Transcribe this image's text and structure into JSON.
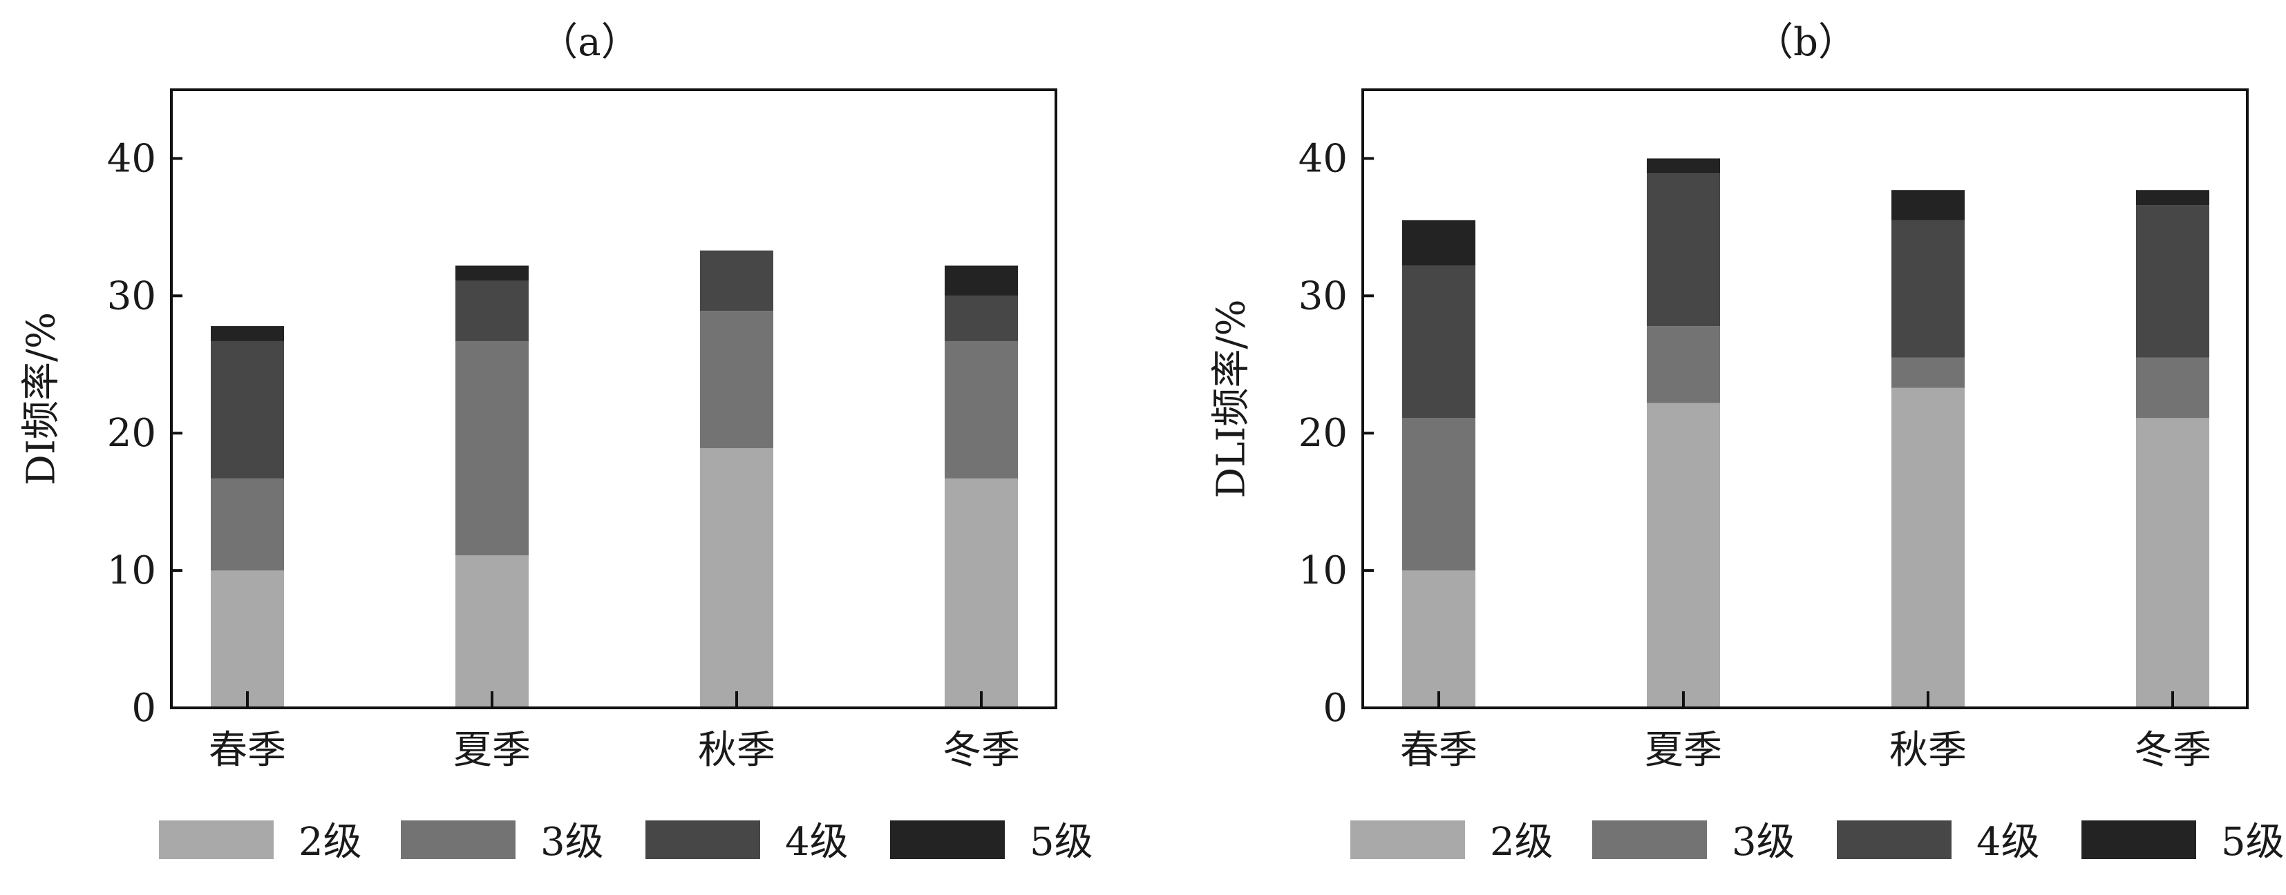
{
  "chart_data": [
    {
      "type": "bar",
      "stacked": true,
      "title": "（a）",
      "ylabel": "DI频率/%",
      "xlabel": "",
      "ylim": [
        0,
        45
      ],
      "yticks": [
        0,
        10,
        20,
        30,
        40
      ],
      "categories": [
        "春季",
        "夏季",
        "秋季",
        "冬季"
      ],
      "series": [
        {
          "name": "2级",
          "color": "#a9a9a9",
          "values": [
            10.0,
            11.1,
            18.9,
            16.7
          ]
        },
        {
          "name": "3级",
          "color": "#737373",
          "values": [
            6.7,
            15.6,
            10.0,
            10.0
          ]
        },
        {
          "name": "4级",
          "color": "#474747",
          "values": [
            10.0,
            4.4,
            4.4,
            3.3
          ]
        },
        {
          "name": "5级",
          "color": "#232323",
          "values": [
            1.1,
            1.1,
            0,
            2.2
          ]
        }
      ],
      "legend": "bottom",
      "grid": false
    },
    {
      "type": "bar",
      "stacked": true,
      "title": "（b）",
      "ylabel": "DLI频率/%",
      "xlabel": "",
      "ylim": [
        0,
        45
      ],
      "yticks": [
        0,
        10,
        20,
        30,
        40
      ],
      "categories": [
        "春季",
        "夏季",
        "秋季",
        "冬季"
      ],
      "series": [
        {
          "name": "2级",
          "color": "#a9a9a9",
          "values": [
            10.0,
            22.2,
            23.3,
            21.1
          ]
        },
        {
          "name": "3级",
          "color": "#737373",
          "values": [
            11.1,
            5.6,
            2.2,
            4.4
          ]
        },
        {
          "name": "4级",
          "color": "#474747",
          "values": [
            11.1,
            11.1,
            10.0,
            11.1
          ]
        },
        {
          "name": "5级",
          "color": "#232323",
          "values": [
            3.3,
            1.1,
            2.2,
            1.1
          ]
        }
      ],
      "legend": "bottom",
      "grid": false
    }
  ]
}
